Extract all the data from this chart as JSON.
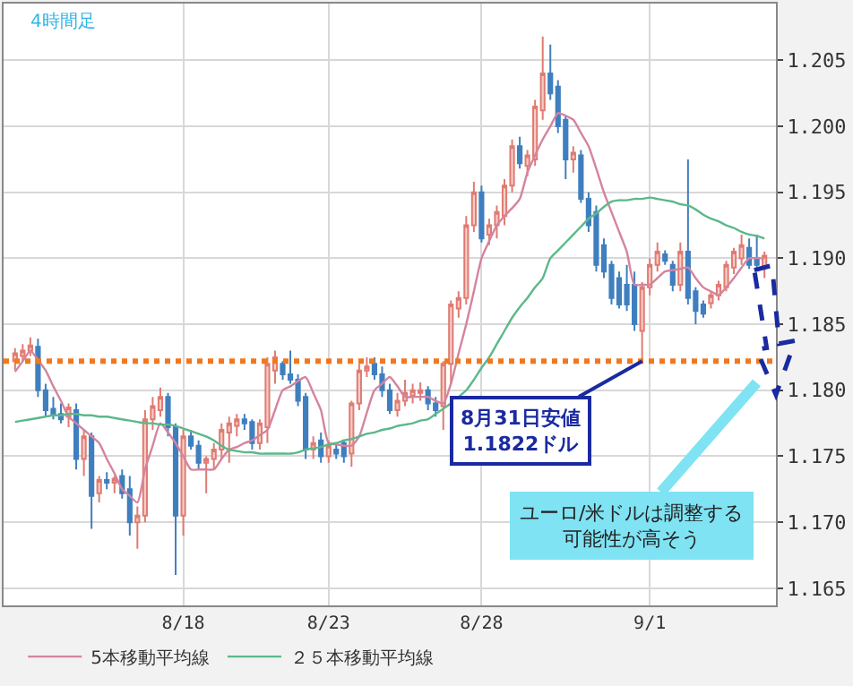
{
  "chart_data": {
    "type": "candlestick",
    "categories": [
      null,
      null,
      null,
      null,
      null,
      null,
      null,
      null,
      null,
      null,
      null,
      null,
      null,
      null,
      null,
      null,
      null,
      null,
      null,
      null,
      null,
      null,
      "8/18",
      null,
      null,
      null,
      null,
      null,
      null,
      null,
      null,
      null,
      null,
      null,
      null,
      null,
      null,
      null,
      null,
      null,
      null,
      "8/23",
      null,
      null,
      null,
      null,
      null,
      null,
      null,
      null,
      null,
      null,
      null,
      null,
      null,
      null,
      null,
      null,
      null,
      null,
      null,
      "8/28",
      null,
      null,
      null,
      null,
      null,
      null,
      null,
      null,
      null,
      null,
      null,
      null,
      null,
      null,
      null,
      null,
      null,
      null,
      null,
      null,
      null,
      "9/1",
      null,
      null,
      null,
      null,
      null,
      null,
      null,
      null,
      null,
      null,
      null,
      null,
      null,
      null,
      null
    ],
    "ohlc": [
      [
        1.1822,
        1.1832,
        1.1815,
        1.1828
      ],
      [
        1.1826,
        1.1835,
        1.1822,
        1.183
      ],
      [
        1.183,
        1.184,
        1.1826,
        1.1834
      ],
      [
        1.1833,
        1.1839,
        1.1795,
        1.18
      ],
      [
        1.18,
        1.1805,
        1.178,
        1.1785
      ],
      [
        1.1786,
        1.1795,
        1.1778,
        1.1782
      ],
      [
        1.1782,
        1.179,
        1.1775,
        1.1778
      ],
      [
        1.178,
        1.179,
        1.1772,
        1.1787
      ],
      [
        1.1785,
        1.179,
        1.174,
        1.1748
      ],
      [
        1.1748,
        1.177,
        1.1735,
        1.1765
      ],
      [
        1.1765,
        1.1768,
        1.1695,
        1.172
      ],
      [
        1.1722,
        1.1735,
        1.1715,
        1.1732
      ],
      [
        1.1732,
        1.1738,
        1.1725,
        1.173
      ],
      [
        1.173,
        1.1735,
        1.1722,
        1.1733
      ],
      [
        1.1735,
        1.174,
        1.1718,
        1.1722
      ],
      [
        1.1725,
        1.1735,
        1.169,
        1.17
      ],
      [
        1.17,
        1.1712,
        1.168,
        1.1705
      ],
      [
        1.1705,
        1.1785,
        1.17,
        1.1778
      ],
      [
        1.1778,
        1.1795,
        1.177,
        1.1788
      ],
      [
        1.1785,
        1.1802,
        1.178,
        1.1795
      ],
      [
        1.1795,
        1.1798,
        1.1765,
        1.1772
      ],
      [
        1.1772,
        1.1775,
        1.166,
        1.1705
      ],
      [
        1.1705,
        1.177,
        1.169,
        1.1765
      ],
      [
        1.1765,
        1.177,
        1.1755,
        1.1758
      ],
      [
        1.1758,
        1.1762,
        1.174,
        1.1745
      ],
      [
        1.1745,
        1.175,
        1.1722,
        1.1748
      ],
      [
        1.1748,
        1.176,
        1.174,
        1.1755
      ],
      [
        1.1755,
        1.1775,
        1.1748,
        1.177
      ],
      [
        1.1768,
        1.178,
        1.1745,
        1.1775
      ],
      [
        1.1773,
        1.1782,
        1.1765,
        1.1778
      ],
      [
        1.1778,
        1.1782,
        1.177,
        1.1775
      ],
      [
        1.1776,
        1.1778,
        1.1755,
        1.176
      ],
      [
        1.176,
        1.1778,
        1.1755,
        1.1775
      ],
      [
        1.1772,
        1.1825,
        1.176,
        1.182
      ],
      [
        1.1815,
        1.183,
        1.1805,
        1.1825
      ],
      [
        1.182,
        1.1822,
        1.1808,
        1.1812
      ],
      [
        1.1812,
        1.183,
        1.1805,
        1.1808
      ],
      [
        1.1808,
        1.1812,
        1.1788,
        1.1792
      ],
      [
        1.1795,
        1.1798,
        1.1748,
        1.1755
      ],
      [
        1.1755,
        1.1765,
        1.1748,
        1.176
      ],
      [
        1.1762,
        1.1768,
        1.1745,
        1.175
      ],
      [
        1.175,
        1.1762,
        1.1745,
        1.1758
      ],
      [
        1.1755,
        1.176,
        1.1748,
        1.1752
      ],
      [
        1.176,
        1.1762,
        1.1745,
        1.175
      ],
      [
        1.1752,
        1.1792,
        1.1742,
        1.179
      ],
      [
        1.179,
        1.182,
        1.1785,
        1.1815
      ],
      [
        1.1815,
        1.1825,
        1.181,
        1.1818
      ],
      [
        1.182,
        1.1825,
        1.1808,
        1.1812
      ],
      [
        1.1812,
        1.1818,
        1.1795,
        1.18
      ],
      [
        1.18,
        1.1805,
        1.1782,
        1.1785
      ],
      [
        1.1785,
        1.1798,
        1.178,
        1.1792
      ],
      [
        1.1792,
        1.1808,
        1.1788,
        1.1798
      ],
      [
        1.1796,
        1.1805,
        1.179,
        1.18
      ],
      [
        1.1798,
        1.1806,
        1.1792,
        1.18
      ],
      [
        1.18,
        1.1803,
        1.1785,
        1.179
      ],
      [
        1.179,
        1.1795,
        1.178,
        1.1785
      ],
      [
        1.1788,
        1.1822,
        1.177,
        1.182
      ],
      [
        1.182,
        1.1868,
        1.1805,
        1.1865
      ],
      [
        1.1862,
        1.1875,
        1.1855,
        1.187
      ],
      [
        1.187,
        1.1932,
        1.1865,
        1.1925
      ],
      [
        1.1925,
        1.1958,
        1.192,
        1.195
      ],
      [
        1.195,
        1.1955,
        1.1912,
        1.1915
      ],
      [
        1.1918,
        1.193,
        1.191,
        1.1925
      ],
      [
        1.1925,
        1.194,
        1.1915,
        1.1935
      ],
      [
        1.1932,
        1.196,
        1.1925,
        1.1955
      ],
      [
        1.1955,
        1.199,
        1.195,
        1.1985
      ],
      [
        1.1985,
        1.1992,
        1.1968,
        1.1972
      ],
      [
        1.197,
        1.1982,
        1.1962,
        1.1978
      ],
      [
        1.1975,
        1.202,
        1.197,
        1.2015
      ],
      [
        1.2012,
        1.2068,
        1.2005,
        1.204
      ],
      [
        1.204,
        1.2062,
        1.202,
        1.2025
      ],
      [
        1.203,
        1.2035,
        1.1995,
        1.2
      ],
      [
        1.2005,
        1.2008,
        1.196,
        1.1975
      ],
      [
        1.1975,
        1.1985,
        1.1965,
        1.198
      ],
      [
        1.1978,
        1.1982,
        1.1942,
        1.1945
      ],
      [
        1.1945,
        1.195,
        1.192,
        1.1925
      ],
      [
        1.1935,
        1.194,
        1.189,
        1.1895
      ],
      [
        1.191,
        1.1915,
        1.1885,
        1.189
      ],
      [
        1.1895,
        1.1898,
        1.1865,
        1.187
      ],
      [
        1.1885,
        1.189,
        1.1862,
        1.1865
      ],
      [
        1.188,
        1.1895,
        1.186,
        1.1865
      ],
      [
        1.188,
        1.189,
        1.1845,
        1.185
      ],
      [
        1.1845,
        1.1882,
        1.1822,
        1.1878
      ],
      [
        1.1878,
        1.19,
        1.1872,
        1.1895
      ],
      [
        1.1895,
        1.1912,
        1.189,
        1.1905
      ],
      [
        1.1903,
        1.1906,
        1.1895,
        1.1898
      ],
      [
        1.1895,
        1.1898,
        1.1875,
        1.188
      ],
      [
        1.188,
        1.1912,
        1.1875,
        1.1905
      ],
      [
        1.1905,
        1.1975,
        1.1865,
        1.187
      ],
      [
        1.1875,
        1.1878,
        1.185,
        1.186
      ],
      [
        1.1865,
        1.1868,
        1.1855,
        1.1858
      ],
      [
        1.1866,
        1.1875,
        1.1862,
        1.1872
      ],
      [
        1.1872,
        1.1883,
        1.1868,
        1.188
      ],
      [
        1.1878,
        1.1898,
        1.1875,
        1.1895
      ],
      [
        1.1893,
        1.1908,
        1.1888,
        1.1905
      ],
      [
        1.19,
        1.1918,
        1.1895,
        1.191
      ],
      [
        1.1908,
        1.1915,
        1.1892,
        1.1895
      ],
      [
        1.19,
        1.1918,
        1.1893,
        1.1895
      ],
      [
        1.1893,
        1.1905,
        1.1885,
        1.1902
      ]
    ],
    "colors": [
      "#e07b72",
      "#e07b72",
      "#e07b72",
      "#3f7fbf",
      "#3f7fbf",
      "#3f7fbf",
      "#3f7fbf",
      "#e07b72",
      "#3f7fbf",
      "#e07b72",
      "#3f7fbf",
      "#e07b72",
      "#3f7fbf",
      "#e07b72",
      "#3f7fbf",
      "#3f7fbf",
      "#e07b72",
      "#e07b72",
      "#e07b72",
      "#e07b72",
      "#3f7fbf",
      "#3f7fbf",
      "#e07b72",
      "#3f7fbf",
      "#3f7fbf",
      "#e07b72",
      "#e07b72",
      "#e07b72",
      "#e07b72",
      "#e07b72",
      "#3f7fbf",
      "#3f7fbf",
      "#e07b72",
      "#e07b72",
      "#e07b72",
      "#3f7fbf",
      "#3f7fbf",
      "#3f7fbf",
      "#3f7fbf",
      "#e07b72",
      "#3f7fbf",
      "#e07b72",
      "#3f7fbf",
      "#3f7fbf",
      "#e07b72",
      "#e07b72",
      "#e07b72",
      "#3f7fbf",
      "#3f7fbf",
      "#3f7fbf",
      "#e07b72",
      "#e07b72",
      "#e07b72",
      "#e07b72",
      "#3f7fbf",
      "#3f7fbf",
      "#e07b72",
      "#e07b72",
      "#e07b72",
      "#e07b72",
      "#e07b72",
      "#3f7fbf",
      "#e07b72",
      "#e07b72",
      "#e07b72",
      "#e07b72",
      "#3f7fbf",
      "#e07b72",
      "#e07b72",
      "#e07b72",
      "#3f7fbf",
      "#3f7fbf",
      "#3f7fbf",
      "#e07b72",
      "#3f7fbf",
      "#3f7fbf",
      "#3f7fbf",
      "#3f7fbf",
      "#3f7fbf",
      "#3f7fbf",
      "#3f7fbf",
      "#3f7fbf",
      "#e07b72",
      "#e07b72",
      "#e07b72",
      "#3f7fbf",
      "#3f7fbf",
      "#e07b72",
      "#3f7fbf",
      "#3f7fbf",
      "#3f7fbf",
      "#e07b72",
      "#e07b72",
      "#e07b72",
      "#e07b72",
      "#e07b72",
      "#3f7fbf",
      "#3f7fbf",
      "#e07b72"
    ],
    "series": [
      {
        "type": "line",
        "name": "5本移動平均線",
        "color": "#d4849e",
        "values": [
          1.1814,
          1.1822,
          1.183,
          1.1823,
          1.1815,
          1.1803,
          1.1792,
          1.178,
          1.1775,
          1.177,
          1.1765,
          1.176,
          1.1748,
          1.1737,
          1.1725,
          1.172,
          1.1715,
          1.174,
          1.1758,
          1.1775,
          1.1768,
          1.176,
          1.175,
          1.174,
          1.174,
          1.174,
          1.174,
          1.1748,
          1.1755,
          1.1757,
          1.176,
          1.1762,
          1.1766,
          1.177,
          1.1785,
          1.18,
          1.1803,
          1.1807,
          1.181,
          1.1798,
          1.1785,
          1.176,
          1.1759,
          1.1758,
          1.1758,
          1.1765,
          1.1783,
          1.18,
          1.1805,
          1.181,
          1.1803,
          1.1795,
          1.1795,
          1.1795,
          1.1795,
          1.1792,
          1.179,
          1.1805,
          1.1828,
          1.185,
          1.1875,
          1.19,
          1.1913,
          1.1925,
          1.1932,
          1.1938,
          1.1945,
          1.1965,
          1.1978,
          1.199,
          1.2,
          1.201,
          1.2008,
          1.2005,
          1.1995,
          1.1985,
          1.1968,
          1.195,
          1.1935,
          1.192,
          1.1905,
          1.188,
          1.188,
          1.188,
          1.1885,
          1.189,
          1.1891,
          1.1892,
          1.1893,
          1.1885,
          1.1878,
          1.1875,
          1.1872,
          1.1878,
          1.1885,
          1.1893,
          1.19,
          1.19,
          1.19
        ]
      },
      {
        "type": "line",
        "name": "２５本移動平均線",
        "color": "#5cb88a",
        "values": [
          1.1776,
          1.1777,
          1.1778,
          1.1779,
          1.178,
          1.1781,
          1.1781,
          1.1782,
          1.1782,
          1.1781,
          1.1781,
          1.178,
          1.178,
          1.1779,
          1.1778,
          1.1777,
          1.1776,
          1.1775,
          1.1775,
          1.1774,
          1.1774,
          1.1773,
          1.1771,
          1.1769,
          1.1767,
          1.1765,
          1.1762,
          1.1758,
          1.1755,
          1.1754,
          1.1753,
          1.1753,
          1.1752,
          1.1752,
          1.1752,
          1.1752,
          1.1752,
          1.1753,
          1.1755,
          1.1756,
          1.1757,
          1.1759,
          1.176,
          1.1762,
          1.1763,
          1.1765,
          1.1767,
          1.1768,
          1.177,
          1.1771,
          1.1773,
          1.1774,
          1.1775,
          1.1777,
          1.1778,
          1.1782,
          1.1786,
          1.179,
          1.1795,
          1.18,
          1.1808,
          1.1817,
          1.1825,
          1.1835,
          1.1845,
          1.1855,
          1.1863,
          1.187,
          1.1878,
          1.1885,
          1.19,
          1.1906,
          1.1912,
          1.1918,
          1.1924,
          1.193,
          1.1934,
          1.1939,
          1.1943,
          1.1944,
          1.1944,
          1.1945,
          1.1945,
          1.1946,
          1.1945,
          1.1944,
          1.1943,
          1.1941,
          1.194,
          1.1937,
          1.1933,
          1.193,
          1.1928,
          1.1925,
          1.1923,
          1.192,
          1.1918,
          1.1917,
          1.1915
        ]
      }
    ],
    "ylim": [
      1.1637,
      1.2093
    ],
    "yticks": [
      1.165,
      {
        "value": 1.17,
        "label": "1.170"
      },
      1.175,
      {
        "value": 1.18,
        "label": "1.180"
      },
      1.185,
      {
        "value": 1.19,
        "label": "1.190"
      },
      1.195,
      {
        "value": 1.2,
        "label": "1.200"
      },
      1.205
    ],
    "grid": true,
    "legend": "bottom",
    "marker": "none",
    "ref_lines": [
      {
        "axis": "y",
        "value": 1.1822,
        "color": "#f07820",
        "line_style": "dotted"
      }
    ],
    "annotations": [
      "4時間足",
      {
        "text": "8月31日安値\n1.1822ドル",
        "y": 1.1822
      },
      "ユーロ/米ドルは調整する可能性が高そう"
    ]
  }
}
